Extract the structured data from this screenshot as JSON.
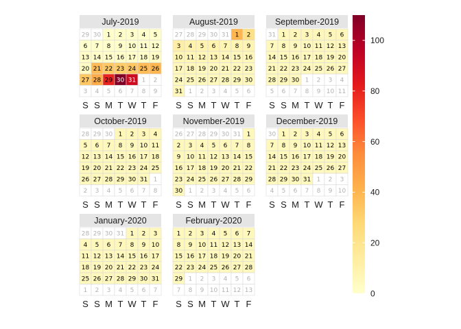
{
  "chart_data": {
    "type": "heatmap",
    "subtype": "calendar",
    "months": [
      {
        "title": "July-2019",
        "year": 2019,
        "month": 7
      },
      {
        "title": "August-2019",
        "year": 2019,
        "month": 8
      },
      {
        "title": "September-2019",
        "year": 2019,
        "month": 9
      },
      {
        "title": "October-2019",
        "year": 2019,
        "month": 10
      },
      {
        "title": "November-2019",
        "year": 2019,
        "month": 11
      },
      {
        "title": "December-2019",
        "year": 2019,
        "month": 12
      },
      {
        "title": "January-2020",
        "year": 2020,
        "month": 1
      },
      {
        "title": "February-2020",
        "year": 2020,
        "month": 2
      }
    ],
    "weekday_labels": [
      "S",
      "S",
      "M",
      "T",
      "W",
      "T",
      "F"
    ],
    "week_start": "Saturday",
    "values_by_date": {
      "2019-07-01": 0,
      "2019-07-02": 0,
      "2019-07-03": 0,
      "2019-07-04": 0,
      "2019-07-05": 0,
      "2019-07-06": 0,
      "2019-07-07": 0,
      "2019-07-08": 0,
      "2019-07-09": 0,
      "2019-07-10": 0,
      "2019-07-11": 0,
      "2019-07-12": 0,
      "2019-07-13": 2,
      "2019-07-14": 1,
      "2019-07-15": 1,
      "2019-07-16": 1,
      "2019-07-17": 1,
      "2019-07-18": 1,
      "2019-07-19": 2,
      "2019-07-20": 3,
      "2019-07-21": 38,
      "2019-07-22": 34,
      "2019-07-23": 32,
      "2019-07-24": 34,
      "2019-07-25": 38,
      "2019-07-26": 40,
      "2019-07-27": 34,
      "2019-07-28": 44,
      "2019-07-29": 80,
      "2019-07-30": 110,
      "2019-07-31": 90,
      "2019-08-01": 40,
      "2019-08-02": 22,
      "2019-08-03": 12,
      "2019-08-04": 10,
      "2019-08-05": 9,
      "2019-08-06": 9,
      "2019-08-07": 8,
      "2019-08-08": 8,
      "2019-08-09": 8,
      "2019-08-10": 8,
      "2019-08-11": 7,
      "2019-08-12": 7,
      "2019-08-13": 7,
      "2019-08-14": 6,
      "2019-08-15": 6,
      "2019-08-16": 6,
      "2019-08-17": 6,
      "2019-08-18": 6,
      "2019-08-19": 5,
      "2019-08-20": 5,
      "2019-08-21": 5,
      "2019-08-22": 5,
      "2019-08-23": 5,
      "2019-08-24": 5,
      "2019-08-25": 5,
      "2019-08-26": 5,
      "2019-08-27": 5,
      "2019-08-28": 5,
      "2019-08-29": 5,
      "2019-08-30": 5,
      "2019-08-31": 6,
      "2019-09-01": 5,
      "2019-09-02": 6,
      "2019-09-03": 6,
      "2019-09-04": 6,
      "2019-09-05": 6,
      "2019-09-06": 6,
      "2019-09-07": 5,
      "2019-09-08": 5,
      "2019-09-09": 5,
      "2019-09-10": 5,
      "2019-09-11": 5,
      "2019-09-12": 5,
      "2019-09-13": 6,
      "2019-09-14": 5,
      "2019-09-15": 5,
      "2019-09-16": 5,
      "2019-09-17": 5,
      "2019-09-18": 5,
      "2019-09-19": 5,
      "2019-09-20": 5,
      "2019-09-21": 5,
      "2019-09-22": 5,
      "2019-09-23": 5,
      "2019-09-24": 5,
      "2019-09-25": 5,
      "2019-09-26": 5,
      "2019-09-27": 5,
      "2019-09-28": 5,
      "2019-09-29": 5,
      "2019-09-30": 5,
      "2019-10-01": 6,
      "2019-10-02": 6,
      "2019-10-03": 6,
      "2019-10-04": 6,
      "2019-10-05": 5,
      "2019-10-06": 5,
      "2019-10-07": 5,
      "2019-10-08": 5,
      "2019-10-09": 5,
      "2019-10-10": 5,
      "2019-10-11": 5,
      "2019-10-12": 5,
      "2019-10-13": 5,
      "2019-10-14": 5,
      "2019-10-15": 5,
      "2019-10-16": 5,
      "2019-10-17": 5,
      "2019-10-18": 5,
      "2019-10-19": 5,
      "2019-10-20": 5,
      "2019-10-21": 5,
      "2019-10-22": 5,
      "2019-10-23": 5,
      "2019-10-24": 5,
      "2019-10-25": 5,
      "2019-10-26": 5,
      "2019-10-27": 5,
      "2019-10-28": 5,
      "2019-10-29": 5,
      "2019-10-30": 5,
      "2019-10-31": 5,
      "2019-11-01": 5,
      "2019-11-02": 5,
      "2019-11-03": 5,
      "2019-11-04": 5,
      "2019-11-05": 5,
      "2019-11-06": 5,
      "2019-11-07": 5,
      "2019-11-08": 5,
      "2019-11-09": 5,
      "2019-11-10": 5,
      "2019-11-11": 5,
      "2019-11-12": 5,
      "2019-11-13": 5,
      "2019-11-14": 5,
      "2019-11-15": 5,
      "2019-11-16": 5,
      "2019-11-17": 5,
      "2019-11-18": 5,
      "2019-11-19": 5,
      "2019-11-20": 5,
      "2019-11-21": 5,
      "2019-11-22": 5,
      "2019-11-23": 5,
      "2019-11-24": 5,
      "2019-11-25": 5,
      "2019-11-26": 5,
      "2019-11-27": 5,
      "2019-11-28": 5,
      "2019-11-29": 5,
      "2019-11-30": 5,
      "2019-12-01": 5,
      "2019-12-02": 5,
      "2019-12-03": 5,
      "2019-12-04": 5,
      "2019-12-05": 5,
      "2019-12-06": 5,
      "2019-12-07": 5,
      "2019-12-08": 5,
      "2019-12-09": 5,
      "2019-12-10": 5,
      "2019-12-11": 5,
      "2019-12-12": 5,
      "2019-12-13": 5,
      "2019-12-14": 5,
      "2019-12-15": 5,
      "2019-12-16": 5,
      "2019-12-17": 5,
      "2019-12-18": 5,
      "2019-12-19": 5,
      "2019-12-20": 5,
      "2019-12-21": 5,
      "2019-12-22": 5,
      "2019-12-23": 5,
      "2019-12-24": 5,
      "2019-12-25": 5,
      "2019-12-26": 5,
      "2019-12-27": 5,
      "2019-12-28": 5,
      "2019-12-29": 5,
      "2019-12-30": 5,
      "2019-12-31": 5,
      "2020-01-01": 5,
      "2020-01-02": 5,
      "2020-01-03": 5,
      "2020-01-04": 5,
      "2020-01-05": 5,
      "2020-01-06": 5,
      "2020-01-07": 5,
      "2020-01-08": 5,
      "2020-01-09": 5,
      "2020-01-10": 5,
      "2020-01-11": 5,
      "2020-01-12": 5,
      "2020-01-13": 5,
      "2020-01-14": 5,
      "2020-01-15": 5,
      "2020-01-16": 5,
      "2020-01-17": 5,
      "2020-01-18": 5,
      "2020-01-19": 5,
      "2020-01-20": 5,
      "2020-01-21": 5,
      "2020-01-22": 5,
      "2020-01-23": 5,
      "2020-01-24": 5,
      "2020-01-25": 5,
      "2020-01-26": 5,
      "2020-01-27": 5,
      "2020-01-28": 5,
      "2020-01-29": 5,
      "2020-01-30": 5,
      "2020-01-31": 5,
      "2020-02-01": 5,
      "2020-02-02": 5,
      "2020-02-03": 5,
      "2020-02-04": 5,
      "2020-02-05": 5,
      "2020-02-06": 5,
      "2020-02-07": 5,
      "2020-02-08": 5,
      "2020-02-09": 5,
      "2020-02-10": 5,
      "2020-02-11": 5,
      "2020-02-12": 5,
      "2020-02-13": 5,
      "2020-02-14": 5,
      "2020-02-15": 5,
      "2020-02-16": 5,
      "2020-02-17": 5,
      "2020-02-18": 5,
      "2020-02-19": 5,
      "2020-02-20": 5,
      "2020-02-21": 5,
      "2020-02-22": 5,
      "2020-02-23": 5,
      "2020-02-24": 5,
      "2020-02-25": 5,
      "2020-02-26": 5,
      "2020-02-27": 5,
      "2020-02-28": 5,
      "2020-02-29": 5
    },
    "colorbar": {
      "min": 0,
      "max": 110,
      "ticks": [
        0,
        20,
        40,
        60,
        80,
        100
      ],
      "palette": [
        "#ffffcc",
        "#ffeda0",
        "#fed976",
        "#feb24c",
        "#fd8d3c",
        "#fc4e2a",
        "#e31a1c",
        "#bd0026",
        "#800026"
      ]
    },
    "colors": {
      "panel_header": "#e5e5e5",
      "out_of_month_text": "#b3b3b3",
      "cell_border": "#d9d9d9"
    },
    "grid": false,
    "legend_placement": "right"
  }
}
